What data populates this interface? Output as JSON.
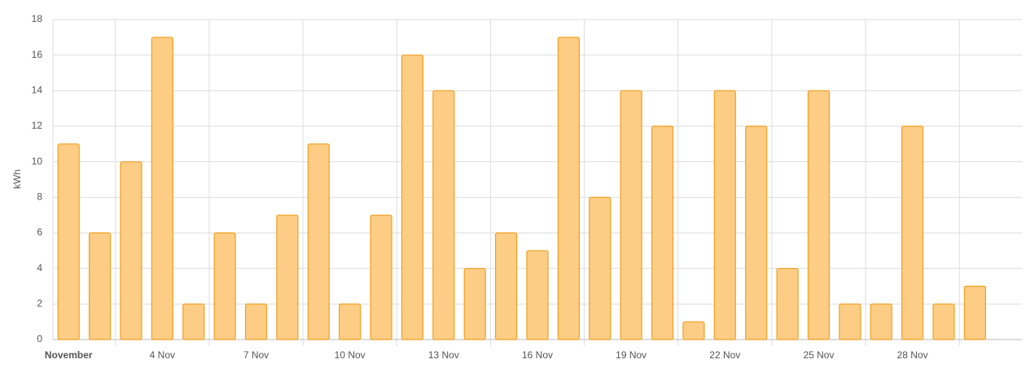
{
  "chart_data": {
    "type": "bar",
    "y_label": "kWh",
    "categories": [
      "November",
      null,
      null,
      "4 Nov",
      null,
      null,
      "7 Nov",
      null,
      null,
      "10 Nov",
      null,
      null,
      "13 Nov",
      null,
      null,
      "16 Nov",
      null,
      null,
      "19 Nov",
      null,
      null,
      "22 Nov",
      null,
      null,
      "25 Nov",
      null,
      null,
      "28 Nov",
      null,
      null
    ],
    "values": [
      11,
      6,
      10,
      17,
      2,
      6,
      2,
      7,
      11,
      2,
      7,
      16,
      14,
      4,
      6,
      5,
      17,
      8,
      14,
      12,
      1,
      14,
      12,
      4,
      14,
      2,
      2,
      12,
      2,
      3
    ],
    "color": "#fdcd85",
    "edge_color": "#f0a020",
    "ylim": [
      0,
      18
    ],
    "yticks": [
      0,
      2,
      4,
      6,
      8,
      10,
      12,
      14,
      16,
      18
    ],
    "grid": true
  }
}
